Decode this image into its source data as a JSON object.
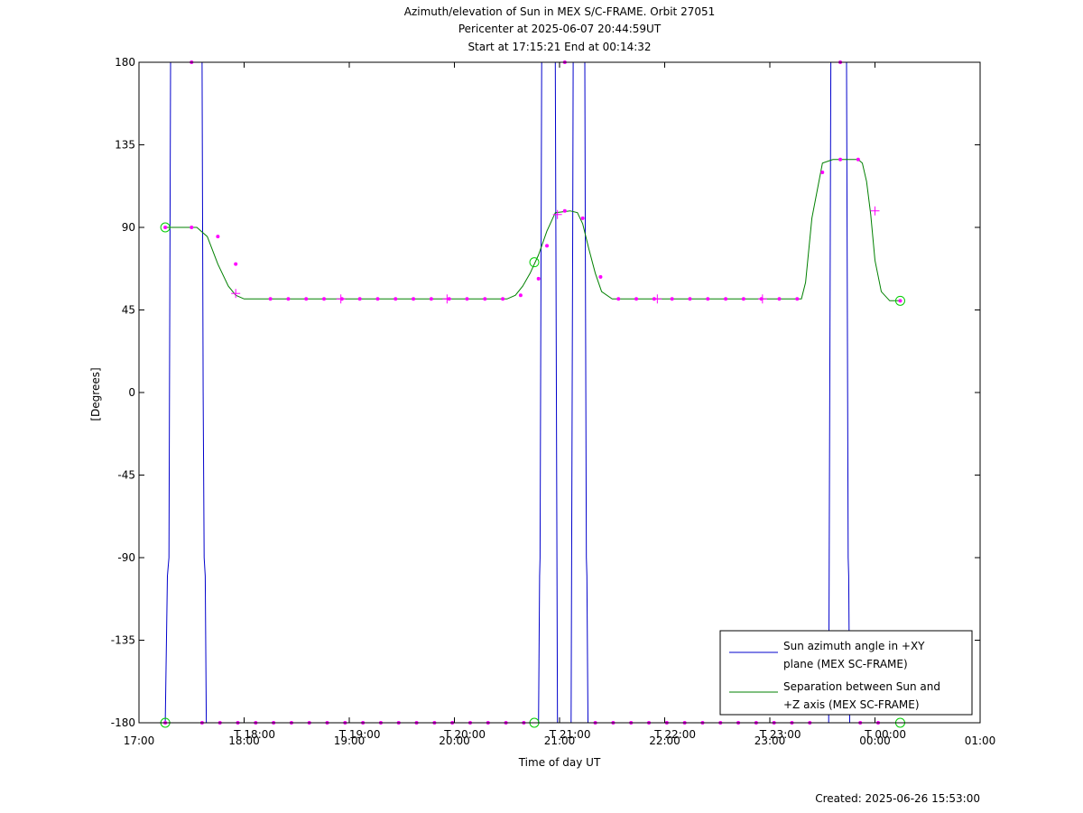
{
  "chart_data": {
    "type": "line",
    "title_lines": [
      "Azimuth/elevation of Sun in MEX S/C-FRAME.  Orbit 27051",
      "Pericenter at 2025-06-07 20:44:59UT",
      "Start at 17:15:21 End at 00:14:32"
    ],
    "xlabel": "Time of day UT",
    "ylabel": "[Degrees]",
    "footer": "Created: 2025-06-26 15:53:00",
    "xlim": [
      17.0,
      25.0
    ],
    "ylim": [
      -180,
      180
    ],
    "x_ticks": [
      {
        "v": 17,
        "label": "17:00"
      },
      {
        "v": 18,
        "label": "18:00"
      },
      {
        "v": 19,
        "label": "19:00"
      },
      {
        "v": 20,
        "label": "20:00"
      },
      {
        "v": 21,
        "label": "21:00"
      },
      {
        "v": 22,
        "label": "22:00"
      },
      {
        "v": 23,
        "label": "23:00"
      },
      {
        "v": 24,
        "label": "00:00"
      },
      {
        "v": 25,
        "label": "01:00"
      }
    ],
    "x_ticks2": [
      {
        "v": 18.1,
        "label": "T 18:00"
      },
      {
        "v": 19.1,
        "label": "T 19:00"
      },
      {
        "v": 20.1,
        "label": "T 20:00"
      },
      {
        "v": 21.1,
        "label": "T 21:00"
      },
      {
        "v": 22.1,
        "label": "T 22:00"
      },
      {
        "v": 23.1,
        "label": "T 23:00"
      },
      {
        "v": 24.1,
        "label": "T 00:00"
      }
    ],
    "y_ticks": [
      180,
      135,
      90,
      45,
      0,
      -45,
      -90,
      -135,
      -180
    ],
    "legend_position": "bottom-right",
    "series": [
      {
        "name": "Sun azimuth angle in +XY plane (MEX SC-FRAME)",
        "legend_lines": [
          "Sun azimuth angle in +XY",
          "plane (MEX SC-FRAME)"
        ],
        "color": "#0000cc",
        "x": [
          17.25,
          17.27,
          17.285,
          17.29,
          17.295,
          17.3,
          17.6,
          17.605,
          17.61,
          17.62,
          17.63,
          17.64,
          20.8,
          20.81,
          20.815,
          20.82,
          20.825,
          20.83,
          20.96,
          20.965,
          20.97,
          20.975,
          20.98,
          21.11,
          21.115,
          21.12,
          21.125,
          21.13,
          21.24,
          21.245,
          21.25,
          21.255,
          21.26,
          21.27,
          23.56,
          23.565,
          23.57,
          23.575,
          23.58,
          23.73,
          23.735,
          23.74,
          23.745,
          23.75,
          23.76,
          24.24
        ],
        "y": [
          -180,
          -100,
          -90,
          0,
          90,
          180,
          180,
          90,
          0,
          -90,
          -100,
          -180,
          -180,
          -100,
          -90,
          0,
          90,
          180,
          180,
          90,
          0,
          -90,
          -180,
          -180,
          -90,
          0,
          90,
          180,
          180,
          90,
          0,
          -90,
          -100,
          -180,
          -180,
          -90,
          0,
          90,
          180,
          180,
          90,
          0,
          -90,
          -100,
          -180,
          -180
        ]
      },
      {
        "name": "Separation between Sun and +Z axis (MEX SC-FRAME)",
        "legend_lines": [
          "Separation between Sun and",
          "+Z axis (MEX SC-FRAME)"
        ],
        "color": "#008000",
        "x": [
          17.25,
          17.35,
          17.55,
          17.65,
          17.75,
          17.85,
          17.92,
          18.0,
          18.15,
          20.5,
          20.58,
          20.65,
          20.72,
          20.8,
          20.88,
          20.96,
          21.1,
          21.17,
          21.22,
          21.28,
          21.34,
          21.4,
          21.5,
          23.3,
          23.34,
          23.4,
          23.5,
          23.6,
          23.8,
          23.84,
          23.88,
          23.92,
          23.96,
          24.0,
          24.06,
          24.14,
          24.2,
          24.24
        ],
        "y": [
          90,
          90,
          90,
          85,
          70,
          58,
          53,
          51,
          51,
          51,
          53,
          58,
          65,
          75,
          88,
          98,
          99,
          98,
          92,
          78,
          65,
          55,
          51,
          51,
          60,
          95,
          125,
          127,
          127,
          127,
          125,
          115,
          97,
          72,
          55,
          50,
          50,
          50
        ]
      }
    ],
    "markers": {
      "color": "#ff00ff",
      "dots": [
        {
          "x": 17.25,
          "y": -180
        },
        {
          "x": 17.25,
          "y": 90
        },
        {
          "x": 17.5,
          "y": 90
        },
        {
          "x": 17.5,
          "y": 180
        },
        {
          "x": 17.75,
          "y": 85
        },
        {
          "x": 17.92,
          "y": 70
        },
        {
          "x": 18.25,
          "y": 51
        },
        {
          "x": 18.42,
          "y": 51
        },
        {
          "x": 18.59,
          "y": 51
        },
        {
          "x": 18.76,
          "y": 51
        },
        {
          "x": 18.93,
          "y": 51
        },
        {
          "x": 19.1,
          "y": 51
        },
        {
          "x": 19.27,
          "y": 51
        },
        {
          "x": 19.44,
          "y": 51
        },
        {
          "x": 19.61,
          "y": 51
        },
        {
          "x": 19.78,
          "y": 51
        },
        {
          "x": 19.95,
          "y": 51
        },
        {
          "x": 20.12,
          "y": 51
        },
        {
          "x": 20.29,
          "y": 51
        },
        {
          "x": 20.46,
          "y": 51
        },
        {
          "x": 20.63,
          "y": 53
        },
        {
          "x": 20.8,
          "y": 62
        },
        {
          "x": 20.88,
          "y": 80
        },
        {
          "x": 21.05,
          "y": 99
        },
        {
          "x": 21.22,
          "y": 95
        },
        {
          "x": 21.39,
          "y": 63
        },
        {
          "x": 21.56,
          "y": 51
        },
        {
          "x": 21.73,
          "y": 51
        },
        {
          "x": 21.9,
          "y": 51
        },
        {
          "x": 22.07,
          "y": 51
        },
        {
          "x": 22.24,
          "y": 51
        },
        {
          "x": 22.41,
          "y": 51
        },
        {
          "x": 22.58,
          "y": 51
        },
        {
          "x": 22.75,
          "y": 51
        },
        {
          "x": 22.92,
          "y": 51
        },
        {
          "x": 23.09,
          "y": 51
        },
        {
          "x": 23.26,
          "y": 51
        },
        {
          "x": 23.5,
          "y": 120
        },
        {
          "x": 23.67,
          "y": 127
        },
        {
          "x": 23.84,
          "y": 127
        },
        {
          "x": 23.67,
          "y": 180
        },
        {
          "x": 21.05,
          "y": 180
        },
        {
          "x": 17.6,
          "y": -180
        },
        {
          "x": 17.77,
          "y": -180
        },
        {
          "x": 17.94,
          "y": -180
        },
        {
          "x": 18.11,
          "y": -180
        },
        {
          "x": 18.28,
          "y": -180
        },
        {
          "x": 18.45,
          "y": -180
        },
        {
          "x": 18.62,
          "y": -180
        },
        {
          "x": 18.79,
          "y": -180
        },
        {
          "x": 18.96,
          "y": -180
        },
        {
          "x": 19.13,
          "y": -180
        },
        {
          "x": 19.3,
          "y": -180
        },
        {
          "x": 19.47,
          "y": -180
        },
        {
          "x": 19.64,
          "y": -180
        },
        {
          "x": 19.81,
          "y": -180
        },
        {
          "x": 19.98,
          "y": -180
        },
        {
          "x": 20.15,
          "y": -180
        },
        {
          "x": 20.32,
          "y": -180
        },
        {
          "x": 20.49,
          "y": -180
        },
        {
          "x": 20.66,
          "y": -180
        },
        {
          "x": 21.34,
          "y": -180
        },
        {
          "x": 21.51,
          "y": -180
        },
        {
          "x": 21.68,
          "y": -180
        },
        {
          "x": 21.85,
          "y": -180
        },
        {
          "x": 22.02,
          "y": -180
        },
        {
          "x": 22.19,
          "y": -180
        },
        {
          "x": 22.36,
          "y": -180
        },
        {
          "x": 22.53,
          "y": -180
        },
        {
          "x": 22.7,
          "y": -180
        },
        {
          "x": 22.87,
          "y": -180
        },
        {
          "x": 23.04,
          "y": -180
        },
        {
          "x": 23.21,
          "y": -180
        },
        {
          "x": 23.38,
          "y": -180
        },
        {
          "x": 23.86,
          "y": -180
        },
        {
          "x": 24.03,
          "y": -180
        },
        {
          "x": 24.24,
          "y": 50
        }
      ],
      "plus": [
        {
          "x": 17.92,
          "y": 54
        },
        {
          "x": 20.98,
          "y": 97
        },
        {
          "x": 24.0,
          "y": 99
        },
        {
          "x": 18.92,
          "y": 51
        },
        {
          "x": 19.93,
          "y": 51
        },
        {
          "x": 21.93,
          "y": 51
        },
        {
          "x": 22.93,
          "y": 51
        }
      ],
      "circles_color": "#00cc00",
      "circles": [
        {
          "x": 17.25,
          "y": 90
        },
        {
          "x": 17.25,
          "y": -180
        },
        {
          "x": 20.76,
          "y": 71
        },
        {
          "x": 20.76,
          "y": -180
        },
        {
          "x": 24.24,
          "y": 50
        },
        {
          "x": 24.24,
          "y": -180
        }
      ]
    }
  }
}
